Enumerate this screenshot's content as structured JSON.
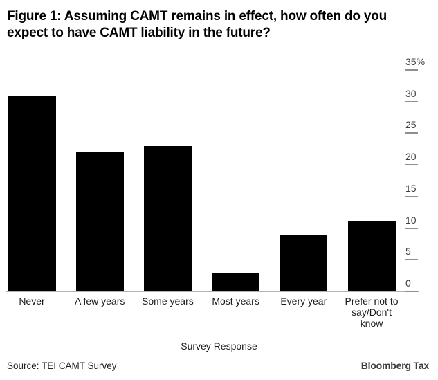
{
  "figure": {
    "title": "Figure 1: Assuming CAMT remains in effect, how often do you expect to have CAMT liability in the future?",
    "source_note": "Source: TEI CAMT Survey",
    "brand": "Bloomberg Tax"
  },
  "chart_data": {
    "type": "bar",
    "title": "Figure 1: Assuming CAMT remains in effect, how often do you expect to have CAMT liability in the future?",
    "categories": [
      "Never",
      "A few years",
      "Some years",
      "Most years",
      "Every year",
      "Prefer not to say/Don't know"
    ],
    "values": [
      31,
      22,
      23,
      3,
      9,
      11
    ],
    "value_unit": "percent",
    "xlabel": "Survey Response",
    "ylabel": "",
    "ylim": [
      0,
      35
    ],
    "yticks": [
      35,
      30,
      25,
      20,
      15,
      10,
      5,
      0
    ],
    "ytick_labels": [
      "35%",
      "30",
      "25",
      "20",
      "15",
      "10",
      "5",
      "0"
    ],
    "axis_side": "right",
    "grid": false,
    "legend": "none",
    "colors": {
      "bar": "#000000",
      "axis_line": "#b3b3b3",
      "tick_mark": "#8f8f8f",
      "tick_label": "#3d3d3d",
      "category_label": "#1a1a1a",
      "title": "#000000",
      "brand_text": "#3c3c3c",
      "background": "#ffffff"
    }
  }
}
